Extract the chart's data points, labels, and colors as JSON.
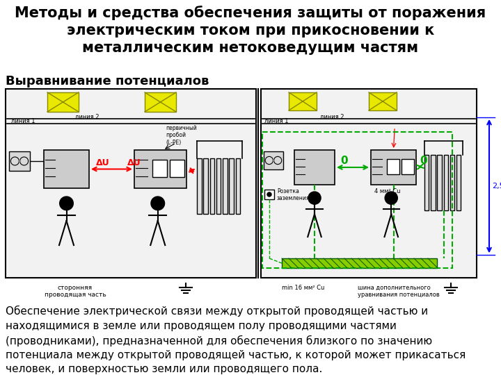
{
  "title_line1": "Методы и средства обеспечения защиты от поражения",
  "title_line2": "электрическим током при прикосновении к",
  "title_line3": "металлическим нетоковедущим частям",
  "subtitle": "Выравнивание потенциалов",
  "body_text": "Обеспечение электрической связи между открытой проводящей частью и\nнаходящимися в земле или проводящем полу проводящими частями\n(проводниками), предназначенной для обеспечения близкого по значению\nпотенциала между открытой проводящей частью, к которой может прикасаться\nчеловек, и поверхностью земли или проводящего пола.",
  "bg_color": "#ffffff",
  "title_fontsize": 15,
  "subtitle_fontsize": 13,
  "body_fontsize": 11
}
